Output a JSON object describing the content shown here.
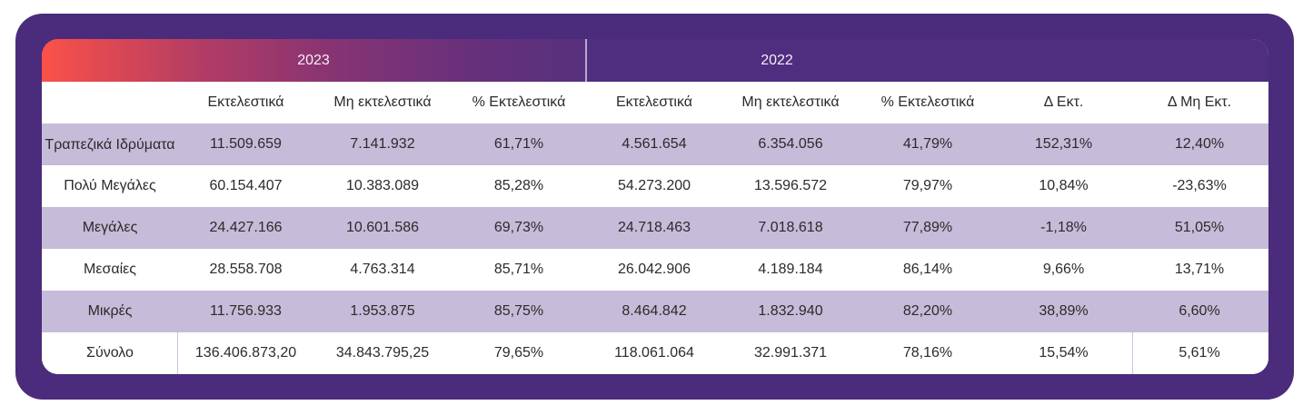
{
  "years": [
    "2023",
    "2022"
  ],
  "columns": [
    "",
    "Εκτελεστικά",
    "Μη εκτελεστικά",
    "% Εκτελεστικά",
    "Εκτελεστικά",
    "Μη εκτελεστικά",
    "% Εκτελεστικά",
    "Δ Εκτ.",
    "Δ Μη Εκτ."
  ],
  "rows": [
    [
      "Τραπεζικά Ιδρύματα",
      "11.509.659",
      "7.141.932",
      "61,71%",
      "4.561.654",
      "6.354.056",
      "41,79%",
      "152,31%",
      "12,40%"
    ],
    [
      "Πολύ Μεγάλες",
      "60.154.407",
      "10.383.089",
      "85,28%",
      "54.273.200",
      "13.596.572",
      "79,97%",
      "10,84%",
      "-23,63%"
    ],
    [
      "Μεγάλες",
      "24.427.166",
      "10.601.586",
      "69,73%",
      "24.718.463",
      "7.018.618",
      "77,89%",
      "-1,18%",
      "51,05%"
    ],
    [
      "Μεσαίες",
      "28.558.708",
      "4.763.314",
      "85,71%",
      "26.042.906",
      "4.189.184",
      "86,14%",
      "9,66%",
      "13,71%"
    ],
    [
      "Μικρές",
      "11.756.933",
      "1.953.875",
      "85,75%",
      "8.464.842",
      "1.832.940",
      "82,20%",
      "38,89%",
      "6,60%"
    ],
    [
      "Σύνολο",
      "136.406.873,20",
      "34.843.795,25",
      "79,65%",
      "118.061.064",
      "32.991.371",
      "78,16%",
      "15,54%",
      "5,61%"
    ]
  ],
  "colors": {
    "frame": "#4b2b7c",
    "header_dark": "#4f2d7f",
    "gradient_start": "#fb5149",
    "shaded_row": "#c6bbd8"
  }
}
